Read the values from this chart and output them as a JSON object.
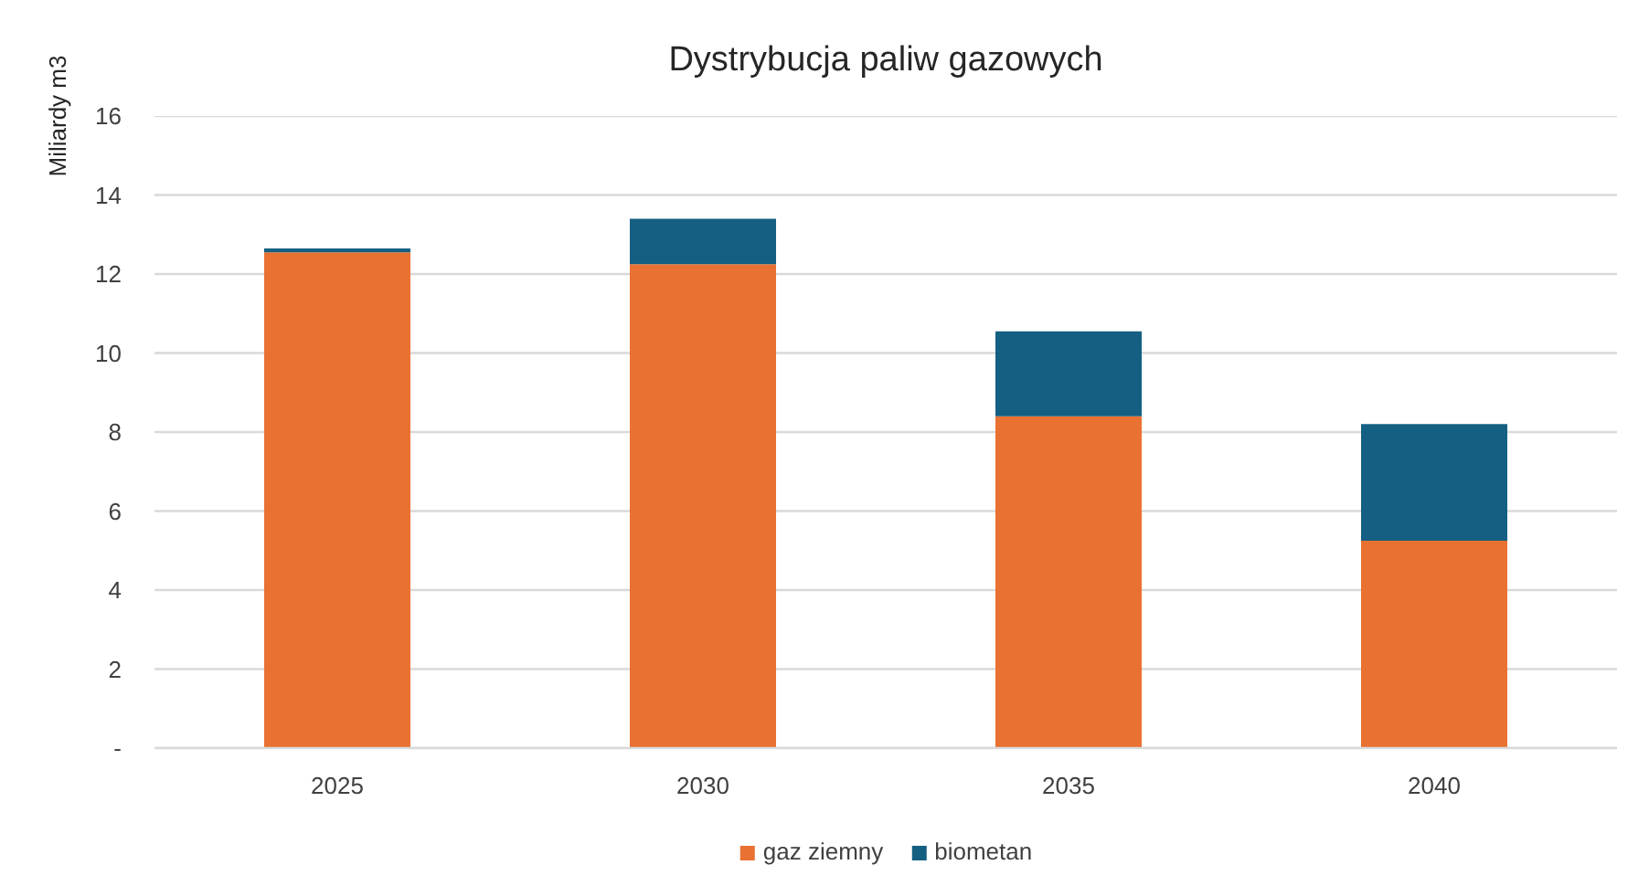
{
  "chart_data": {
    "type": "bar",
    "title": "Dystrybucja paliw gazowych",
    "ylabel": "Miliardy m3",
    "categories": [
      "2025",
      "2030",
      "2035",
      "2040"
    ],
    "series": [
      {
        "name": "gaz ziemny",
        "color": "#e97132",
        "values": [
          12.55,
          12.25,
          8.4,
          5.25
        ]
      },
      {
        "name": "biometan",
        "color": "#156082",
        "values": [
          0.1,
          1.15,
          2.15,
          2.95
        ]
      }
    ],
    "stacked": true,
    "ylim": [
      0,
      16
    ],
    "yticks": [
      {
        "value": 0,
        "label": "-"
      },
      2,
      4,
      6,
      8,
      10,
      12,
      14,
      16
    ],
    "grid": "y",
    "legend": "bottom"
  }
}
